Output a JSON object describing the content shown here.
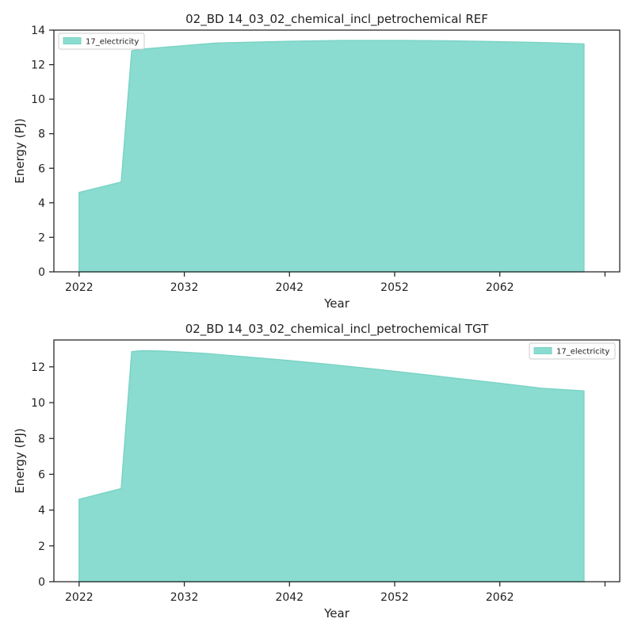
{
  "figure": {
    "colors": {
      "area_fill": "#8adcd0",
      "area_edge": "#7bd3c6",
      "axes": "#222222"
    }
  },
  "chart_data": [
    {
      "type": "area",
      "title": "02_BD 14_03_02_chemical_incl_petrochemical REF",
      "xlabel": "Year",
      "ylabel": "Energy (PJ)",
      "xlim": [
        2019.6,
        2073.4
      ],
      "ylim": [
        0,
        14
      ],
      "xticks": [
        2022,
        2032,
        2042,
        2052,
        2062,
        2072
      ],
      "xtick_labels": [
        "2022",
        "2032",
        "2042",
        "2052",
        "2062",
        ""
      ],
      "yticks": [
        0,
        2,
        4,
        6,
        8,
        10,
        12,
        14
      ],
      "ytick_labels": [
        "0",
        "2",
        "4",
        "6",
        "8",
        "10",
        "12",
        "14"
      ],
      "grid": false,
      "legend_position": "upper-left",
      "series": [
        {
          "name": "17_electricity",
          "x": [
            2022,
            2026,
            2027,
            2028,
            2032,
            2035,
            2042,
            2047,
            2052,
            2057,
            2062,
            2066,
            2070
          ],
          "values": [
            4.6,
            5.2,
            12.8,
            12.9,
            13.1,
            13.25,
            13.35,
            13.4,
            13.4,
            13.38,
            13.33,
            13.28,
            13.2
          ]
        }
      ]
    },
    {
      "type": "area",
      "title": "02_BD 14_03_02_chemical_incl_petrochemical TGT",
      "xlabel": "Year",
      "ylabel": "Energy (PJ)",
      "xlim": [
        2019.6,
        2073.4
      ],
      "ylim": [
        0,
        13.5
      ],
      "xticks": [
        2022,
        2032,
        2042,
        2052,
        2062,
        2072
      ],
      "xtick_labels": [
        "2022",
        "2032",
        "2042",
        "2052",
        "2062",
        ""
      ],
      "yticks": [
        0,
        2,
        4,
        6,
        8,
        10,
        12
      ],
      "ytick_labels": [
        "0",
        "2",
        "4",
        "6",
        "8",
        "10",
        "12"
      ],
      "grid": false,
      "legend_position": "upper-right",
      "series": [
        {
          "name": "17_electricity",
          "x": [
            2022,
            2026,
            2027,
            2028,
            2030,
            2034,
            2038,
            2042,
            2046,
            2050,
            2054,
            2058,
            2062,
            2066,
            2070
          ],
          "values": [
            4.6,
            5.2,
            12.85,
            12.9,
            12.88,
            12.75,
            12.55,
            12.35,
            12.12,
            11.88,
            11.62,
            11.35,
            11.08,
            10.8,
            10.65
          ]
        }
      ]
    }
  ]
}
